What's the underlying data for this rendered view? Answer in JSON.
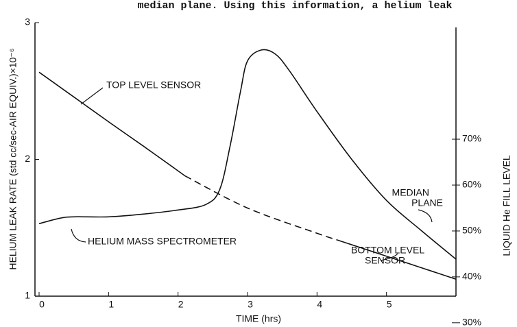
{
  "page_text": "median plane.  Using this information, a helium leak",
  "chart_data": {
    "type": "line",
    "xlabel": "TIME (hrs)",
    "ylabel": "HELIUM LEAK RATE (std cc/sec-AIR EQUIV.)×10⁻⁶",
    "y2label": "LIQUID He FILL LEVEL",
    "xlim": [
      0,
      6
    ],
    "xticks": [
      0,
      1,
      2,
      3,
      4,
      5
    ],
    "ylim": [
      1,
      3
    ],
    "yticks": [
      1,
      2,
      3
    ],
    "y2lim": [
      35.8,
      95.4
    ],
    "y2ticks": [
      {
        "value": 30,
        "label": "30%"
      },
      {
        "value": 40,
        "label": "40%"
      },
      {
        "value": 50,
        "label": "50%"
      },
      {
        "value": 60,
        "label": "60%"
      },
      {
        "value": 70,
        "label": "70%"
      }
    ],
    "series": [
      {
        "color": "#111",
        "dashed": false,
        "x": [
          0,
          0.3,
          0.5,
          1,
          1.5,
          2,
          2.4,
          2.6,
          2.75,
          2.9,
          3.0,
          3.2,
          3.4,
          3.6,
          4,
          4.5,
          5,
          5.5,
          6
        ],
        "values": [
          1.53,
          1.57,
          1.58,
          1.58,
          1.6,
          1.63,
          1.67,
          1.78,
          2.1,
          2.5,
          2.72,
          2.8,
          2.77,
          2.65,
          2.35,
          2.0,
          1.7,
          1.48,
          1.27
        ]
      },
      {
        "color": "#111",
        "dashed": false,
        "axis": "y2",
        "x": [
          0,
          0.5,
          1,
          1.5,
          2,
          2.1
        ],
        "values": [
          84.6,
          79.2,
          73.8,
          68.5,
          63.1,
          62.0
        ]
      },
      {
        "color": "#111",
        "dashed": true,
        "axis": "y2",
        "x": [
          2.1,
          3,
          4,
          4.3
        ],
        "values": [
          62.0,
          55.0,
          49.5,
          48.0
        ]
      },
      {
        "color": "#111",
        "dashed": false,
        "axis": "y2",
        "x": [
          4.3,
          5,
          5.5,
          6
        ],
        "values": [
          48.0,
          44.5,
          42.0,
          39.5
        ]
      }
    ],
    "annotations": [
      {
        "lines": [
          "TOP LEVEL SENSOR"
        ]
      },
      {
        "lines": [
          "HELIUM MASS SPECTROMETER"
        ]
      },
      {
        "lines": [
          "BOTTOM LEVEL",
          "SENSOR"
        ]
      },
      {
        "lines": [
          "MEDIAN",
          "PLANE"
        ]
      }
    ]
  }
}
